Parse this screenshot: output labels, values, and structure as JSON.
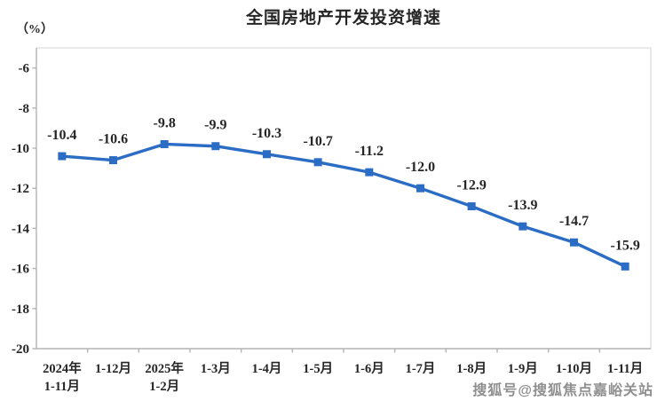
{
  "header": {
    "title": "全国房地产开发投资增速",
    "unit_label": "（%）"
  },
  "footer": {
    "watermark": "搜狐号@搜狐焦点嘉峪关站"
  },
  "chart_data": {
    "type": "line",
    "title": "全国房地产开发投资增速",
    "unit_label": "（%）",
    "categories": [
      [
        "2024年",
        "1-11月"
      ],
      [
        "1-12月"
      ],
      [
        "2025年",
        "1-2月"
      ],
      [
        "1-3月"
      ],
      [
        "1-4月"
      ],
      [
        "1-5月"
      ],
      [
        "1-6月"
      ],
      [
        "1-7月"
      ],
      [
        "1-8月"
      ],
      [
        "1-9月"
      ],
      [
        "1-10月"
      ],
      [
        "1-11月"
      ]
    ],
    "values": [
      -10.4,
      -10.6,
      -9.8,
      -9.9,
      -10.3,
      -10.7,
      -11.2,
      -12.0,
      -12.9,
      -13.9,
      -14.7,
      -15.9
    ],
    "point_labels": [
      "-10.4",
      "-10.6",
      "-9.8",
      "-9.9",
      "-10.3",
      "-10.7",
      "-11.2",
      "-12.0",
      "-12.9",
      "-13.9",
      "-14.7",
      "-15.9"
    ],
    "y_ticks": [
      -6,
      -8,
      -10,
      -12,
      -14,
      -16,
      -18,
      -20
    ],
    "ylim": [
      -20,
      -5
    ],
    "xlabel": "",
    "ylabel": "（%）",
    "grid": false,
    "legend": "none",
    "marker": "square",
    "colors": {
      "line": "#2B6CC4",
      "text": "#262626",
      "axis": "#b3b3b3",
      "border": "#e3e3e3"
    }
  }
}
